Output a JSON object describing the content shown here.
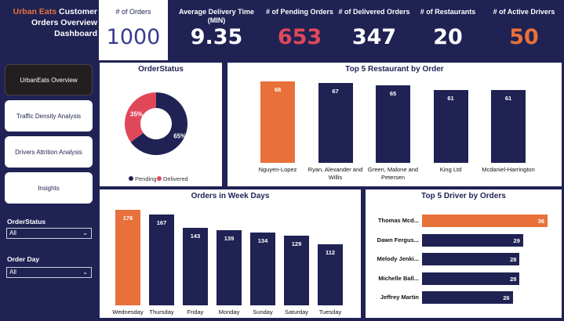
{
  "header": {
    "brand": "Urban Eats",
    "title_rest": " Customer Orders Overview Dashboard",
    "kpis": [
      {
        "label": "# of Orders",
        "value": "1000",
        "color": "#3a3a8f"
      },
      {
        "label": "Average Delivery Time (MIN)",
        "value": "9.35",
        "color": "#ffffff"
      },
      {
        "label": "# of Pending Orders",
        "value": "653",
        "color": "#e0485a"
      },
      {
        "label": "# of Delivered Orders",
        "value": "347",
        "color": "#ffffff"
      },
      {
        "label": "# of Restaurants",
        "value": "20",
        "color": "#ffffff"
      },
      {
        "label": "# of Active Drivers",
        "value": "50",
        "color": "#e8703a"
      }
    ]
  },
  "sidebar": {
    "items": [
      {
        "label": "UrbanEats Overview",
        "active": true
      },
      {
        "label": "Traffic Density Analysis",
        "active": false
      },
      {
        "label": "Drivers Attrition Analysis",
        "active": false
      },
      {
        "label": "Insights",
        "active": false
      }
    ],
    "filters": [
      {
        "label": "OrderStatus",
        "value": "All"
      },
      {
        "label": "Order Day",
        "value": "All"
      }
    ]
  },
  "colors": {
    "navy": "#1f2253",
    "orange": "#e8703a",
    "red": "#e0485a"
  },
  "chart_data": [
    {
      "type": "pie",
      "title": "OrderStatus",
      "slices": [
        {
          "name": "Pending",
          "value": 65,
          "label": "65%",
          "color": "#1f2253"
        },
        {
          "name": "Delivered",
          "value": 35,
          "label": "35%",
          "color": "#e0485a"
        }
      ],
      "legend": "bottom"
    },
    {
      "type": "bar",
      "title": "Top 5 Restaurant by Order",
      "categories": [
        "Nguyen-Lopez",
        "Ryan, Alexander and Willis",
        "Green, Malone and Petersen",
        "King Ltd",
        "Mcdaniel-Harrington"
      ],
      "values": [
        68,
        67,
        65,
        61,
        61
      ],
      "highlight": 0
    },
    {
      "type": "bar",
      "title": "Orders in Week Days",
      "categories": [
        "Wednesday",
        "Thursday",
        "Friday",
        "Monday",
        "Sunday",
        "Saturday",
        "Tuesday"
      ],
      "values": [
        176,
        167,
        143,
        139,
        134,
        129,
        112
      ],
      "highlight": 0
    },
    {
      "type": "bar",
      "orientation": "horizontal",
      "title": "Top 5 Driver by Orders",
      "categories": [
        "Thomas Mcd...",
        "Dawn Fergus...",
        "Melody Jenki...",
        "Michelle Ball...",
        "Jeffrey Martin"
      ],
      "values": [
        36,
        29,
        28,
        28,
        26
      ],
      "highlight": 0
    }
  ]
}
